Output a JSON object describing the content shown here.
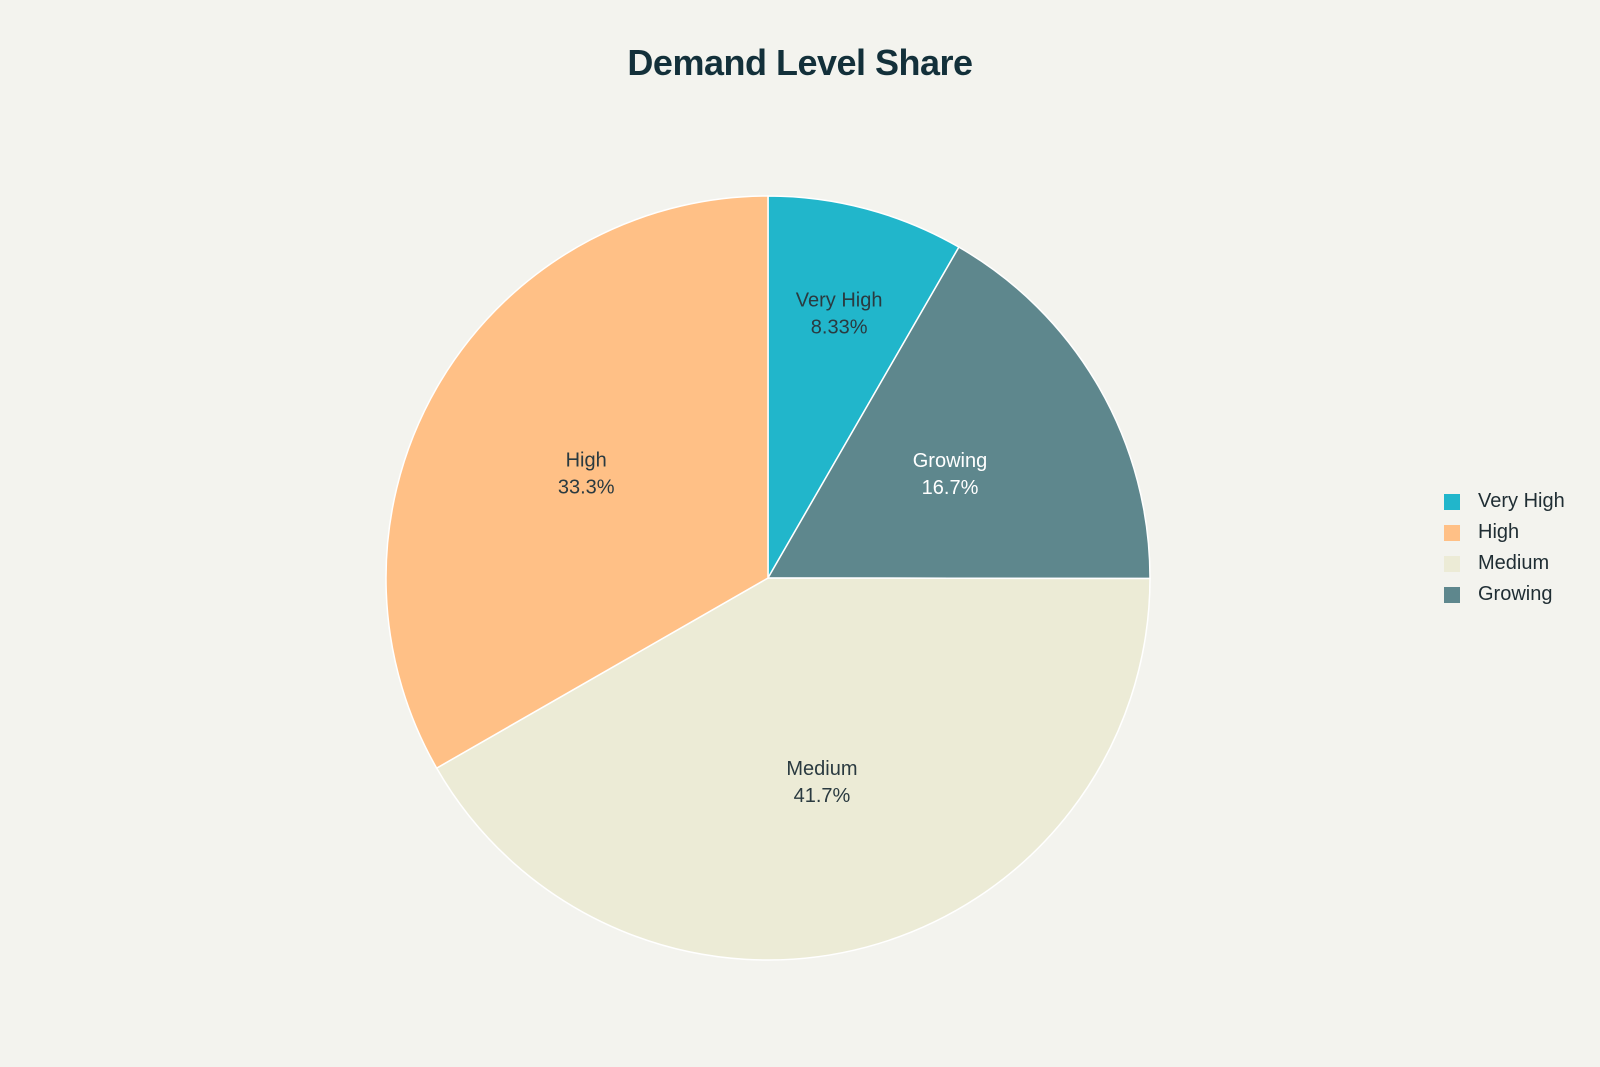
{
  "chart_data": {
    "type": "pie",
    "title": "Demand Level Share",
    "slices": [
      {
        "label": "Very High",
        "value": 8.33,
        "display": "8.33%",
        "color": "#21B6CB",
        "text_color": "#2A3A40"
      },
      {
        "label": "Growing",
        "value": 16.7,
        "display": "16.7%",
        "color": "#5E878D",
        "text_color": "#FFFFFF"
      },
      {
        "label": "Medium",
        "value": 41.7,
        "display": "41.7%",
        "color": "#ECEBD6",
        "text_color": "#2A3A40"
      },
      {
        "label": "High",
        "value": 33.3,
        "display": "33.3%",
        "color": "#FFC086",
        "text_color": "#2A3A40"
      }
    ],
    "legend": {
      "placement": "right",
      "entries": [
        {
          "label": "Very High",
          "color": "#21B6CB"
        },
        {
          "label": "High",
          "color": "#FFC086"
        },
        {
          "label": "Medium",
          "color": "#ECEBD6"
        },
        {
          "label": "Growing",
          "color": "#5E878D"
        }
      ]
    }
  }
}
